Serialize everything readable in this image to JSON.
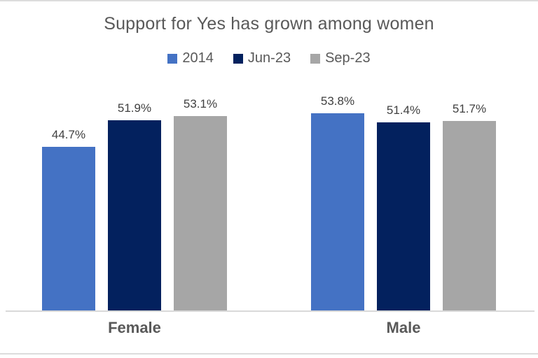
{
  "title": "Support for Yes has grown among women",
  "legend": [
    {
      "label": "2014",
      "color": "#4472C4"
    },
    {
      "label": "Jun-23",
      "color": "#03215E"
    },
    {
      "label": "Sep-23",
      "color": "#A6A6A6"
    }
  ],
  "chart_data": {
    "type": "bar",
    "title": "Support for Yes has grown among women",
    "categories": [
      "Female",
      "Male"
    ],
    "series": [
      {
        "name": "2014",
        "color": "#4472C4",
        "values": [
          44.7,
          53.8
        ]
      },
      {
        "name": "Jun-23",
        "color": "#03215E",
        "values": [
          51.9,
          51.4
        ]
      },
      {
        "name": "Sep-23",
        "color": "#A6A6A6",
        "values": [
          53.1,
          51.7
        ]
      }
    ],
    "data_labels": [
      [
        "44.7%",
        "51.9%",
        "53.1%"
      ],
      [
        "53.8%",
        "51.4%",
        "51.7%"
      ]
    ],
    "value_suffix": "%",
    "ylim": [
      0,
      60
    ],
    "y_axis_visible": false,
    "gridlines": false,
    "legend_position": "top",
    "axis_line_color": "#D9D9D9"
  },
  "colors": {
    "title_text": "#595959",
    "legend_text": "#595959",
    "data_label_text": "#404040",
    "category_label_text": "#595959",
    "background": "#FFFFFF"
  }
}
